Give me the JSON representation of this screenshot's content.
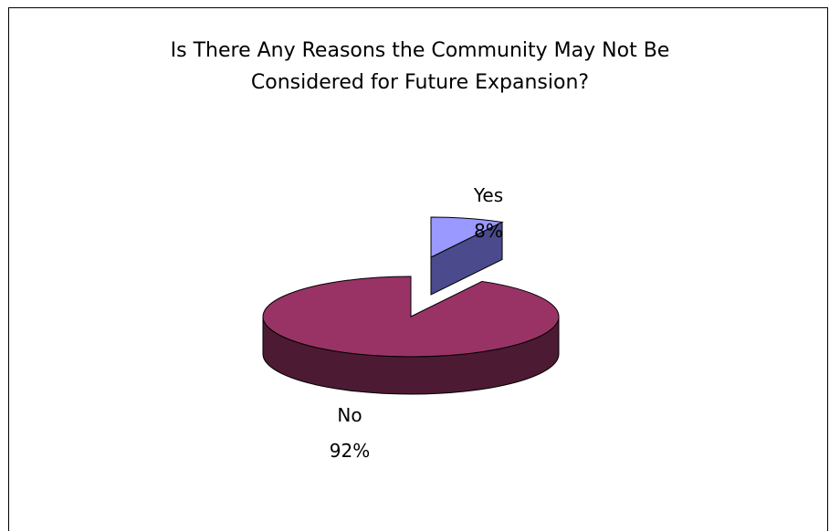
{
  "chart_data": {
    "type": "pie",
    "title": "Is There Any Reasons the Community May Not Be Considered for Future Expansion?",
    "title_lines": [
      "Is There Any Reasons the Community May Not Be",
      "Considered for Future Expansion?"
    ],
    "labels": [
      "Yes",
      "No"
    ],
    "values": [
      8,
      92
    ],
    "value_labels": [
      "8%",
      "92%"
    ],
    "colors": [
      "#9999ff",
      "#993366"
    ],
    "side_colors": [
      "#4a4a8c",
      "#4d1a33"
    ],
    "exploded": "Yes",
    "legend": "none"
  }
}
